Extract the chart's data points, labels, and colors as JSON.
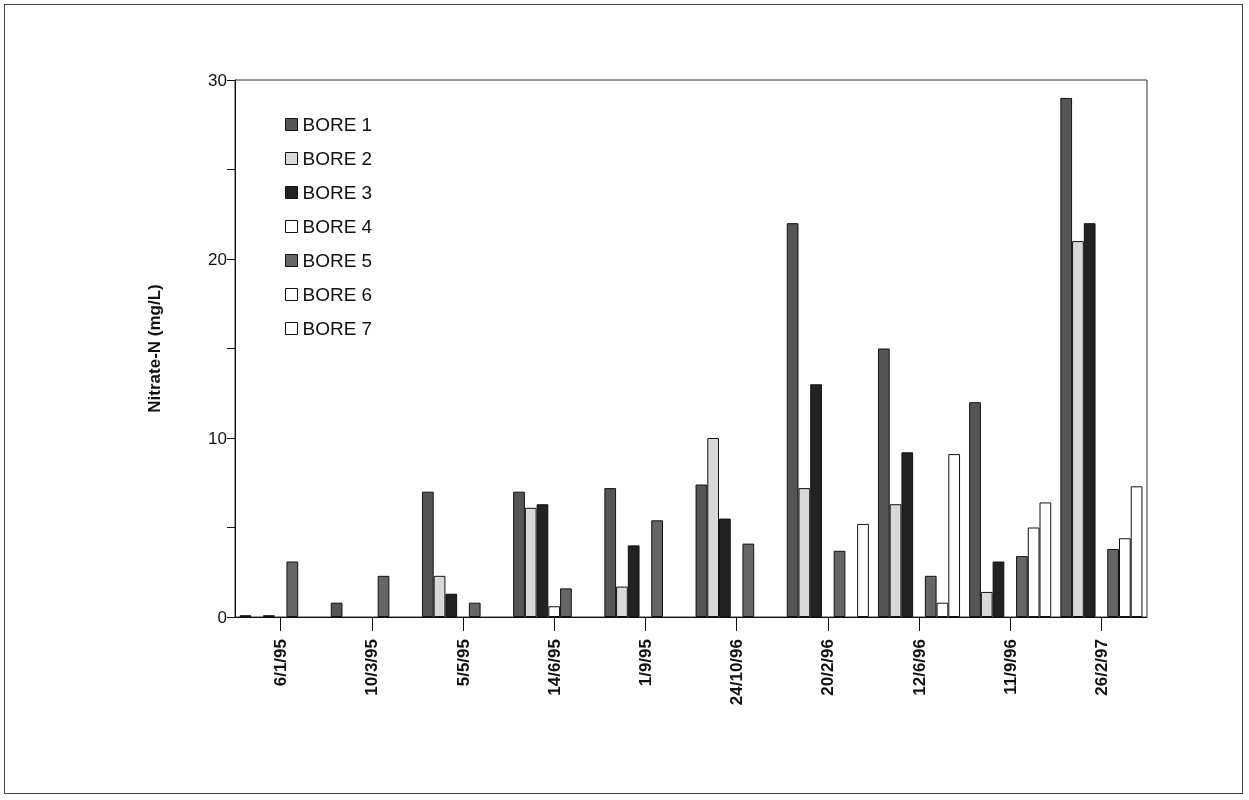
{
  "chart_data": {
    "type": "bar",
    "ylabel": "Nitrate-N (mg/L)",
    "categories": [
      "6/1/95",
      "10/3/95",
      "5/5/95",
      "14/6/95",
      "1/9/95",
      "24/10/96",
      "20/2/96",
      "12/6/96",
      "11/9/96",
      "26/2/97"
    ],
    "series": [
      {
        "name": "BORE 1",
        "color": "#555555",
        "values": [
          0.1,
          0.8,
          7.0,
          7.0,
          7.2,
          7.4,
          22,
          15,
          12,
          29
        ]
      },
      {
        "name": "BORE 2",
        "color": "#d9d9d9",
        "values": [
          null,
          0,
          2.3,
          6.1,
          1.7,
          10.0,
          7.2,
          6.3,
          1.4,
          21
        ]
      },
      {
        "name": "BORE 3",
        "color": "#222222",
        "values": [
          0.1,
          0,
          1.3,
          6.3,
          4.0,
          5.5,
          13,
          9.2,
          3.1,
          22
        ]
      },
      {
        "name": "BORE 4",
        "color": "#ffffff",
        "values": [
          null,
          0,
          0,
          0.6,
          0,
          0,
          null,
          0,
          0,
          0
        ]
      },
      {
        "name": "BORE 5",
        "color": "#666666",
        "values": [
          3.1,
          2.3,
          0.8,
          1.6,
          5.4,
          4.1,
          3.7,
          2.3,
          3.4,
          3.8
        ]
      },
      {
        "name": "BORE 6",
        "color": "#ffffff",
        "values": [
          null,
          0,
          0,
          0,
          0,
          0,
          0,
          0.8,
          5.0,
          4.4
        ]
      },
      {
        "name": "BORE 7",
        "color": "#ffffff",
        "values": [
          0,
          0,
          0,
          0,
          0,
          0,
          5.2,
          9.1,
          6.4,
          7.3
        ]
      }
    ],
    "ylim": [
      0,
      30
    ],
    "yticks": [
      0,
      {
        "value": 5,
        "label": null
      },
      10,
      {
        "value": 15,
        "label": null
      },
      20,
      {
        "value": 25,
        "label": null
      },
      30
    ],
    "grid": false,
    "legend": "top left"
  }
}
